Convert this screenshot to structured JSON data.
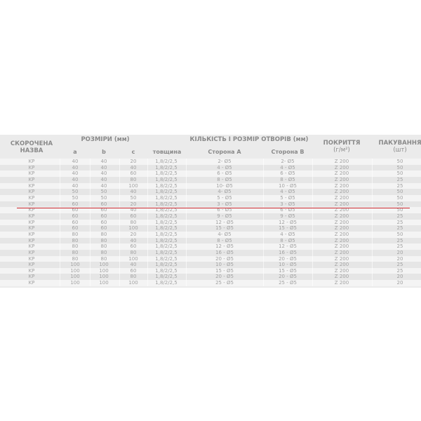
{
  "header": {
    "name": [
      "СКОРОЧЕНА",
      "НАЗВА"
    ],
    "sizes": "РОЗМІРИ (мм)",
    "a": "a",
    "b": "b",
    "c": "c",
    "thickness": "товщина",
    "holes": "КІЛЬКІСТЬ І РОЗМІР ОТВОРІВ (мм)",
    "side_a": "Сторона А",
    "side_b": "Сторона В",
    "coating": [
      "ПОКРИТТЯ",
      "(г/м²)"
    ],
    "packing": [
      "ПАКУВАННЯ",
      "(шт)"
    ]
  },
  "accent_line_color": "#c9252c",
  "rows": [
    [
      "KP",
      "40",
      "40",
      "20",
      "1,8/2/2,5",
      "2- Ø5",
      "2- Ø5",
      "Z 200",
      "50"
    ],
    [
      "KP",
      "40",
      "40",
      "40",
      "1,8/2/2,5",
      "4 - Ø5",
      "4 - Ø5",
      "Z 200",
      "50"
    ],
    [
      "KP",
      "40",
      "40",
      "60",
      "1,8/2/2,5",
      "6 - Ø5",
      "6 - Ø5",
      "Z 200",
      "50"
    ],
    [
      "KP",
      "40",
      "40",
      "80",
      "1,8/2/2,5",
      "8 - Ø5",
      "8 - Ø5",
      "Z 200",
      "25"
    ],
    [
      "KP",
      "40",
      "40",
      "100",
      "1,8/2/2,5",
      "10- Ø5",
      "10 - Ø5",
      "Z 200",
      "25"
    ],
    [
      "KP",
      "50",
      "50",
      "40",
      "1,8/2/2,5",
      "4- Ø5",
      "4 - Ø5",
      "Z 200",
      "50"
    ],
    [
      "KP",
      "50",
      "50",
      "50",
      "1,8/2/2,5",
      "5 - Ø5",
      "5 - Ø5",
      "Z 200",
      "50"
    ],
    [
      "KP",
      "60",
      "60",
      "20",
      "1,8/2/2,5",
      "3 - Ø5",
      "3 - Ø5",
      "Z 200",
      "50"
    ],
    [
      "KP",
      "60",
      "60",
      "40",
      "1,8/2/2,5",
      "6 - Ø5",
      "6 - Ø5",
      "Z 200",
      "50"
    ],
    [
      "KP",
      "60",
      "60",
      "60",
      "1,8/2/2,5",
      "9 - Ø5",
      "9 - Ø5",
      "Z 200",
      "25"
    ],
    [
      "KP",
      "60",
      "60",
      "80",
      "1,8/2/2,5",
      "12 - Ø5",
      "12 - Ø5",
      "Z 200",
      "25"
    ],
    [
      "KP",
      "60",
      "60",
      "100",
      "1,8/2/2,5",
      "15 - Ø5",
      "15 - Ø5",
      "Z 200",
      "25"
    ],
    [
      "KP",
      "80",
      "80",
      "20",
      "1,8/2/2,5",
      "4- Ø5",
      "4 - Ø5",
      "Z 200",
      "50"
    ],
    [
      "KP",
      "80",
      "80",
      "40",
      "1,8/2/2,5",
      "8 - Ø5",
      "8 - Ø5",
      "Z 200",
      "25"
    ],
    [
      "KP",
      "80",
      "80",
      "60",
      "1,8/2/2,5",
      "12 - Ø5",
      "12 - Ø5",
      "Z 200",
      "25"
    ],
    [
      "KP",
      "80",
      "80",
      "80",
      "1,8/2/2,5",
      "16 - Ø5",
      "16 - Ø5",
      "Z 200",
      "20"
    ],
    [
      "KP",
      "80",
      "80",
      "100",
      "1,8/2/2,5",
      "20 - Ø5",
      "20 - Ø5",
      "Z 200",
      "20"
    ],
    [
      "KP",
      "100",
      "100",
      "40",
      "1,8/2/2,5",
      "10 - Ø5",
      "10 - Ø5",
      "Z 200",
      "25"
    ],
    [
      "KP",
      "100",
      "100",
      "60",
      "1,8/2/2,5",
      "15 - Ø5",
      "15 - Ø5",
      "Z 200",
      "25"
    ],
    [
      "KP",
      "100",
      "100",
      "80",
      "1,8/2/2,5",
      "20 - Ø5",
      "20 - Ø5",
      "Z 200",
      "20"
    ],
    [
      "KP",
      "100",
      "100",
      "100",
      "1,8/2/2,5",
      "25 - Ø5",
      "25 - Ø5",
      "Z 200",
      "20"
    ]
  ]
}
